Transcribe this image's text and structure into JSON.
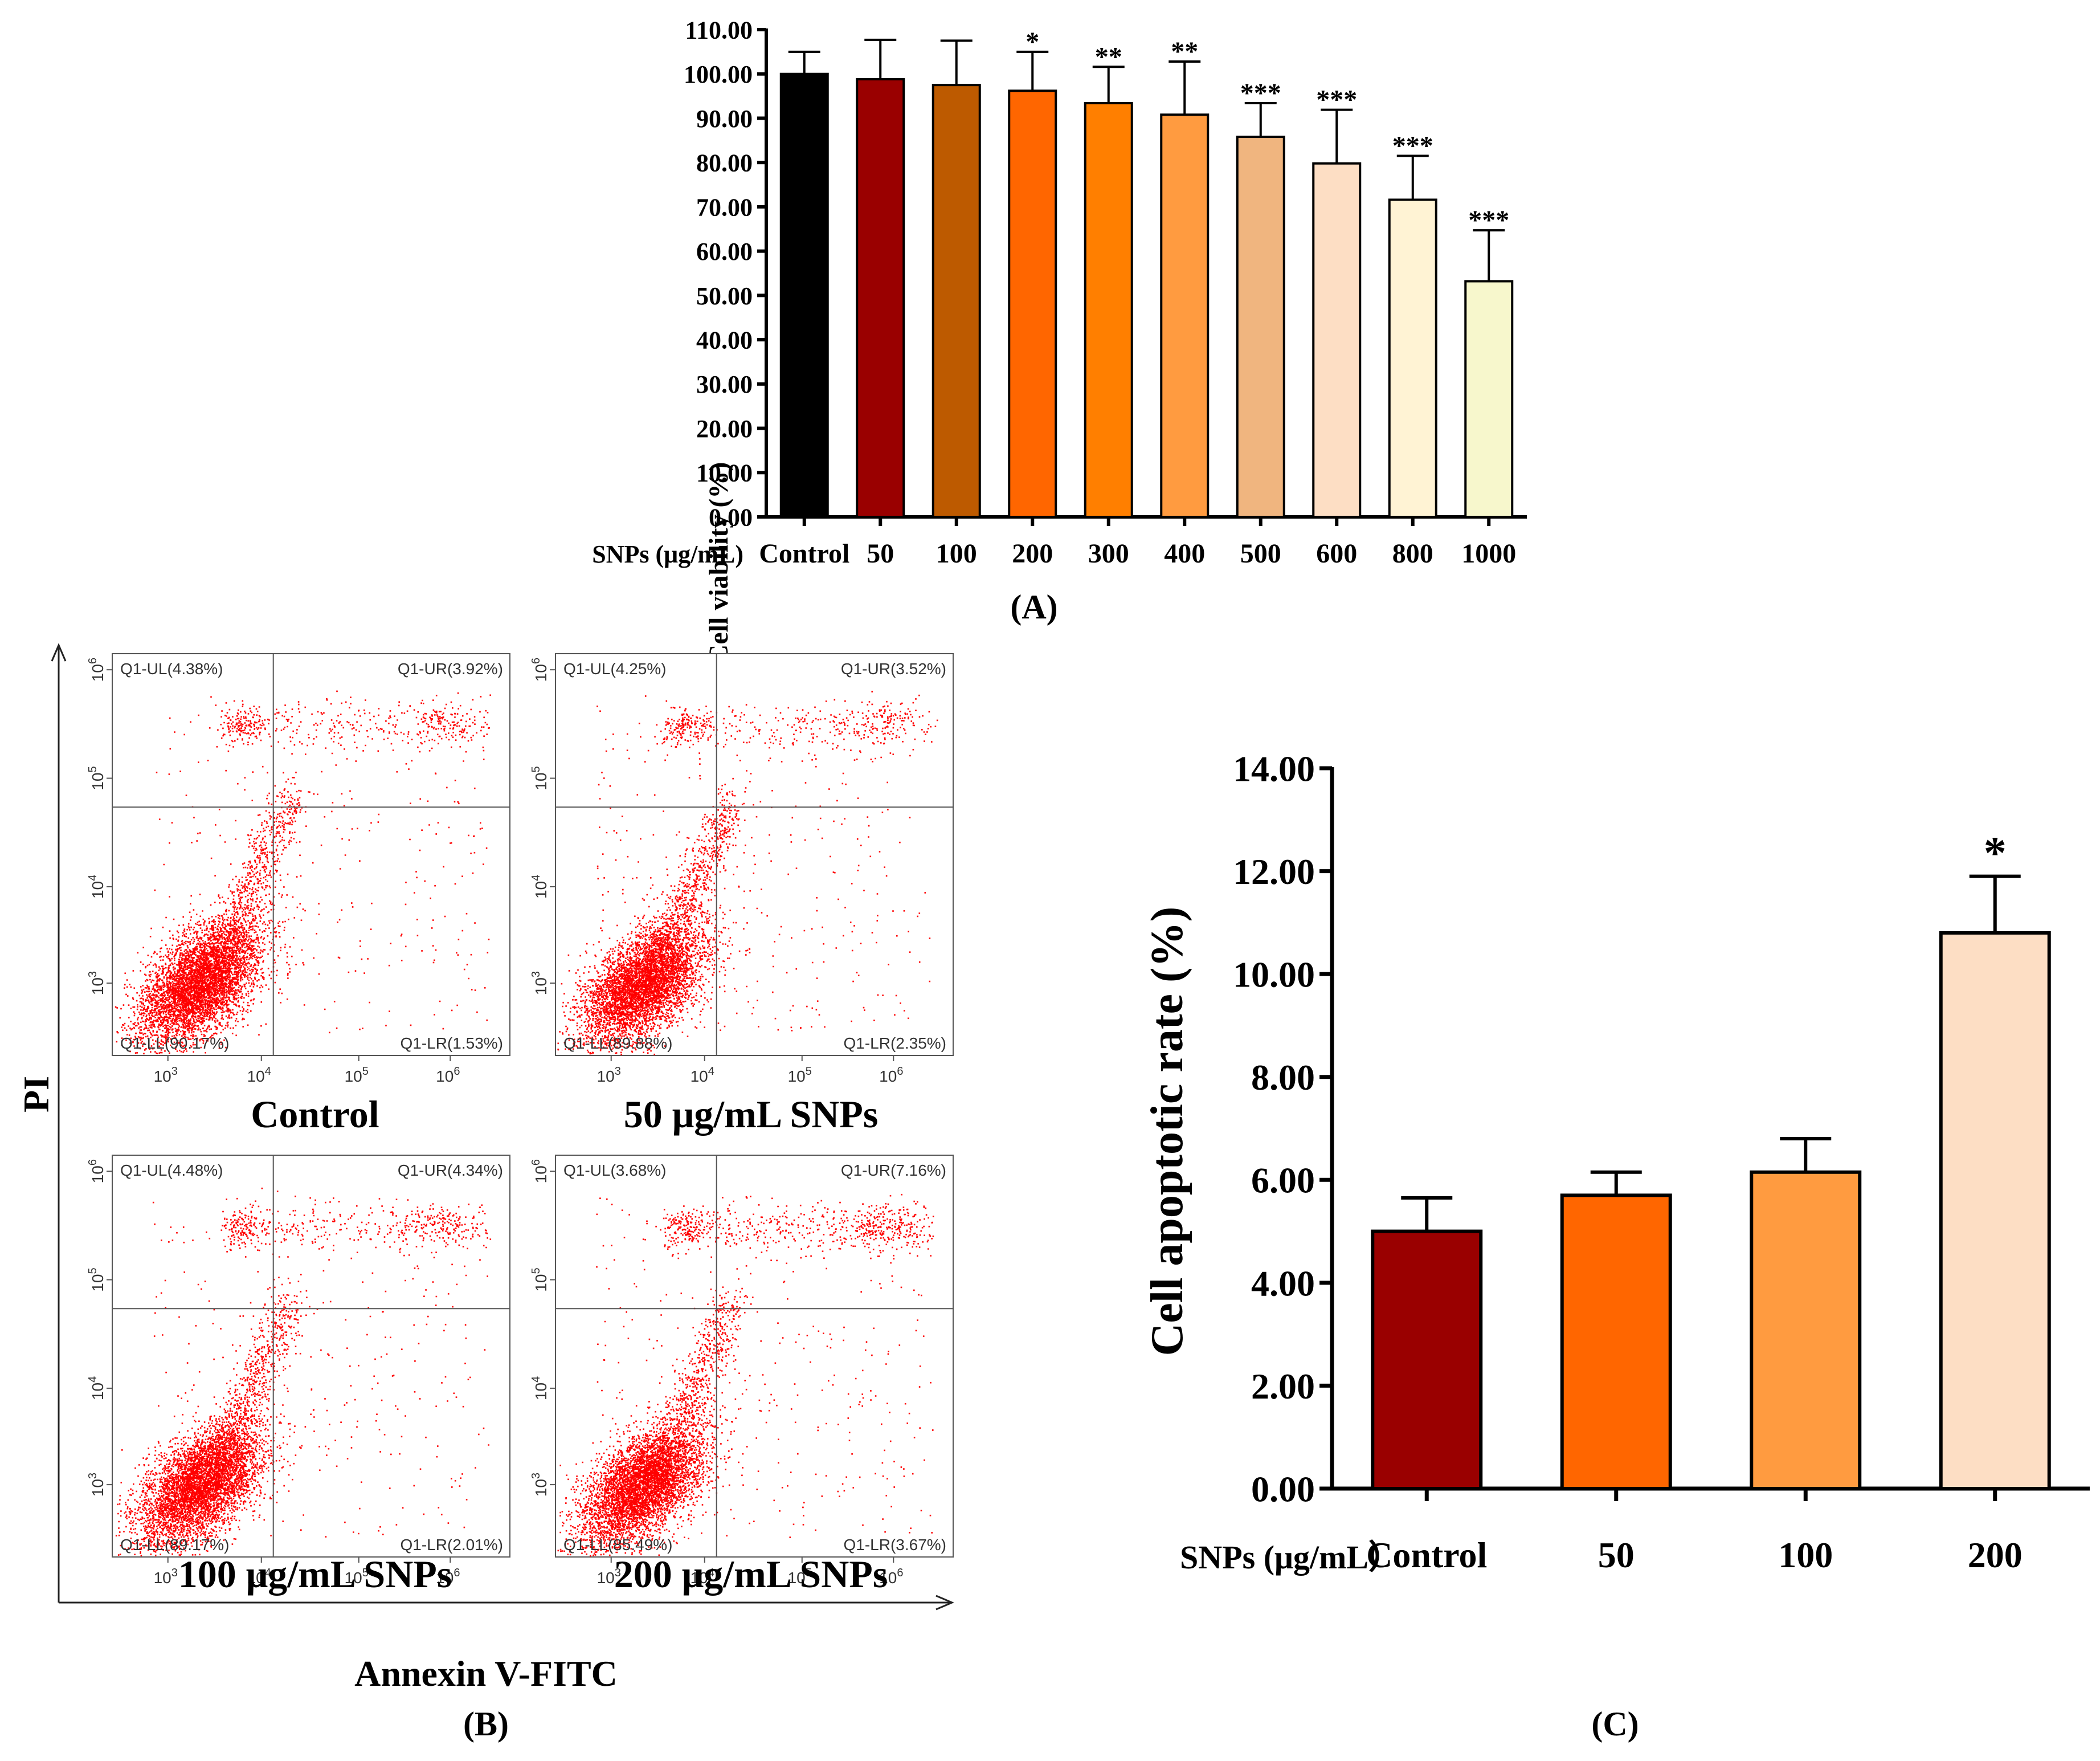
{
  "chart_data": [
    {
      "panel": "A",
      "type": "bar",
      "panel_label": "(A)",
      "ylabel": "Cell viability (%)",
      "x_prefix": "SNPs (μg/mL)",
      "categories": [
        "Control",
        "50",
        "100",
        "200",
        "300",
        "400",
        "500",
        "600",
        "800",
        "1000"
      ],
      "values": [
        100.0,
        98.8,
        97.5,
        96.2,
        93.4,
        90.8,
        85.8,
        79.8,
        71.6,
        53.2
      ],
      "errors": [
        5.0,
        8.9,
        10.0,
        8.8,
        8.2,
        12.0,
        7.6,
        12.1,
        9.9,
        11.5
      ],
      "significance": [
        "",
        "",
        "",
        "*",
        "**",
        "**",
        "***",
        "***",
        "***",
        "***"
      ],
      "ylim": [
        0,
        110
      ],
      "yticks": [
        "0.00",
        "10.00",
        "20.00",
        "30.00",
        "40.00",
        "50.00",
        "60.00",
        "70.00",
        "80.00",
        "90.00",
        "100.00",
        "110.00"
      ],
      "colors": [
        "#000000",
        "#9a0000",
        "#bd5a00",
        "#ff6600",
        "#ff7f00",
        "#ff9b40",
        "#f0b57f",
        "#fddec4",
        "#fff3d4",
        "#f7f7cc"
      ]
    },
    {
      "panel": "B",
      "type": "scatter",
      "panel_label": "(B)",
      "ylabel": "PI",
      "xlabel": "Annexin V-FITC",
      "tick_base": "10",
      "tick_exponents": [
        "3",
        "4",
        "5",
        "6"
      ],
      "plots": [
        {
          "title": "Control",
          "ul": "Q1-UL(4.38%)",
          "ur": "Q1-UR(3.92%)",
          "ll": "Q1-LL(90.17%)",
          "lr": "Q1-LR(1.53%)"
        },
        {
          "title": "50 μg/mL SNPs",
          "ul": "Q1-UL(4.25%)",
          "ur": "Q1-UR(3.52%)",
          "ll": "Q1-LL(89.88%)",
          "lr": "Q1-LR(2.35%)"
        },
        {
          "title": "100 μg/mL SNPs",
          "ul": "Q1-UL(4.48%)",
          "ur": "Q1-UR(4.34%)",
          "ll": "Q1-LL(89.17%)",
          "lr": "Q1-LR(2.01%)"
        },
        {
          "title": "200 μg/mL SNPs",
          "ul": "Q1-UL(3.68%)",
          "ur": "Q1-UR(7.16%)",
          "ll": "Q1-LL(85.49%)",
          "lr": "Q1-LR(3.67%)"
        }
      ],
      "point_color": "#ff0000"
    },
    {
      "panel": "C",
      "type": "bar",
      "panel_label": "(C)",
      "ylabel": "Cell apoptotic rate (%)",
      "x_prefix": "SNPs (μg/mL）",
      "categories": [
        "Control",
        "50",
        "100",
        "200"
      ],
      "values": [
        5.0,
        5.7,
        6.15,
        10.8
      ],
      "errors": [
        0.65,
        0.45,
        0.65,
        1.1
      ],
      "significance": [
        "",
        "",
        "",
        "*"
      ],
      "ylim": [
        0,
        14
      ],
      "yticks": [
        "0.00",
        "2.00",
        "4.00",
        "6.00",
        "8.00",
        "10.00",
        "12.00",
        "14.00"
      ],
      "colors": [
        "#9a0000",
        "#ff6600",
        "#ff9b40",
        "#fddec4"
      ]
    }
  ]
}
